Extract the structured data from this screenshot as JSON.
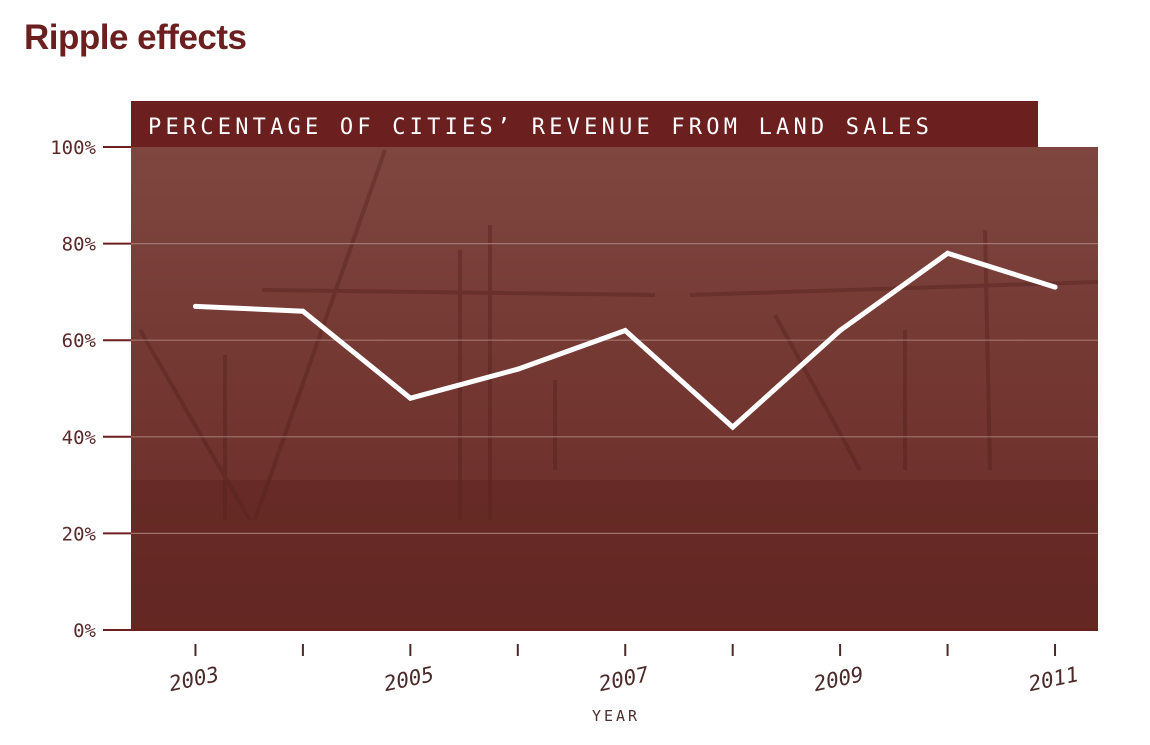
{
  "title": "Ripple effects",
  "chart_data": {
    "type": "line",
    "title": "PERCENTAGE OF CITIES’ REVENUE FROM LAND SALES",
    "xlabel": "YEAR",
    "ylabel": "",
    "x": [
      2003,
      2004,
      2005,
      2006,
      2007,
      2008,
      2009,
      2010,
      2011
    ],
    "values": [
      67,
      66,
      48,
      54,
      62,
      42,
      62,
      78,
      71
    ],
    "xlim": [
      2002.4,
      2011.4
    ],
    "ylim": [
      0,
      100
    ],
    "yticks": [
      0,
      20,
      40,
      60,
      80,
      100
    ],
    "ytick_labels": [
      "0%",
      "20%",
      "40%",
      "60%",
      "80%",
      "100%"
    ],
    "xticks": [
      2003,
      2004,
      2005,
      2006,
      2007,
      2008,
      2009,
      2010,
      2011
    ],
    "xtick_labels": [
      "2003",
      "",
      "2005",
      "",
      "2007",
      "",
      "2009",
      "",
      "2011"
    ],
    "grid": true,
    "line_color": "#ffffff",
    "background_color": "#7a3b36",
    "accent_color": "#6b1f1f"
  }
}
